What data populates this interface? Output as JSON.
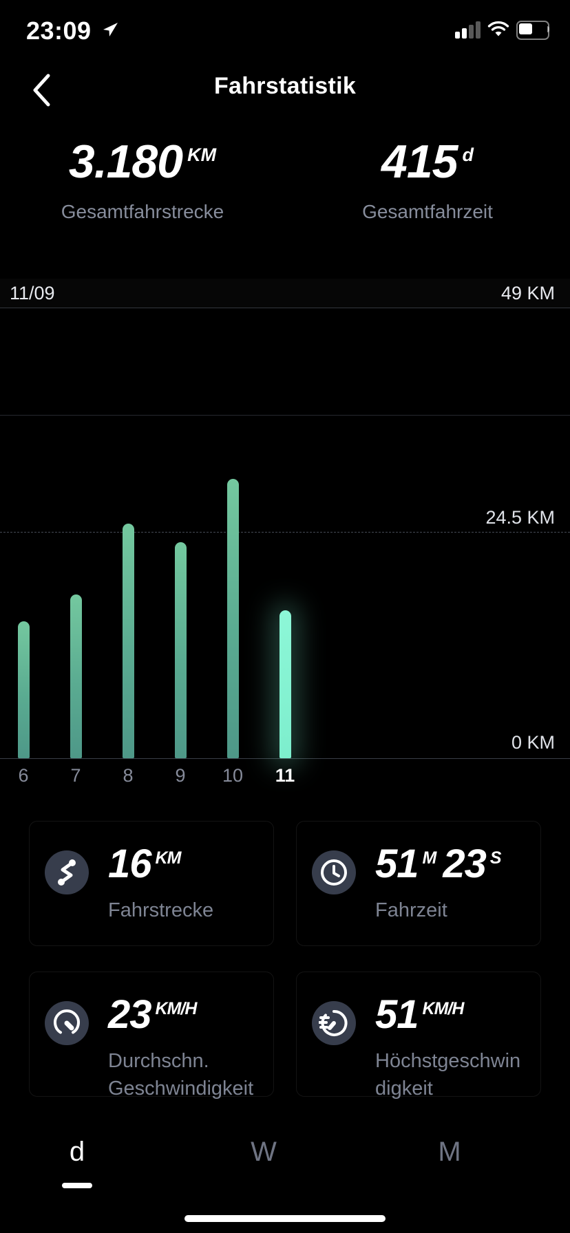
{
  "status_bar": {
    "time": "23:09"
  },
  "header": {
    "title": "Fahrstatistik"
  },
  "summary": {
    "distance": {
      "value": "3.180",
      "unit": "KM",
      "label": "Gesamtfahrstrecke"
    },
    "time": {
      "value": "415",
      "unit": "d",
      "label": "Gesamtfahrzeit"
    }
  },
  "chart_data": {
    "type": "bar",
    "date_label": "11/09",
    "y_max_label": "49 KM",
    "y_mid_label": "24.5 KM",
    "y_zero_label": "0 KM",
    "ylim": [
      0,
      49
    ],
    "categories": [
      "6",
      "7",
      "8",
      "9",
      "10",
      "11"
    ],
    "values": [
      14.8,
      17.7,
      25.4,
      23.4,
      30.2,
      16
    ],
    "selected_index": 5,
    "selected_value_km": 16,
    "bar_color_top": "#74c89f",
    "bar_color_bottom": "#4e9888",
    "selected_bar_color": "#7deecd",
    "grid": "horizontal, dashed mid line at 24.5 KM"
  },
  "cards": [
    {
      "icon": "route-icon",
      "value": "16",
      "unit": "KM",
      "value2": "",
      "unit2": "",
      "label": "Fahrstrecke"
    },
    {
      "icon": "clock-icon",
      "value": "51",
      "unit": "M",
      "value2": "23",
      "unit2": "S",
      "label": "Fahrzeit"
    },
    {
      "icon": "speedometer-icon",
      "value": "23",
      "unit": "KM/H",
      "value2": "",
      "unit2": "",
      "label": "Durchschn. Geschwindigkeit"
    },
    {
      "icon": "max-speed-icon",
      "value": "51",
      "unit": "KM/H",
      "value2": "",
      "unit2": "",
      "label": "Höchstgeschwindigkeit"
    }
  ],
  "tabs": [
    {
      "label": "d",
      "selected": true
    },
    {
      "label": "W",
      "selected": false
    },
    {
      "label": "M",
      "selected": false
    }
  ],
  "colors": {
    "background_top": "#303543",
    "background_bottom": "#0e1016",
    "accent_bar": "#5aab91",
    "accent_selected": "#7deecd",
    "muted_text": "#878d9c"
  }
}
